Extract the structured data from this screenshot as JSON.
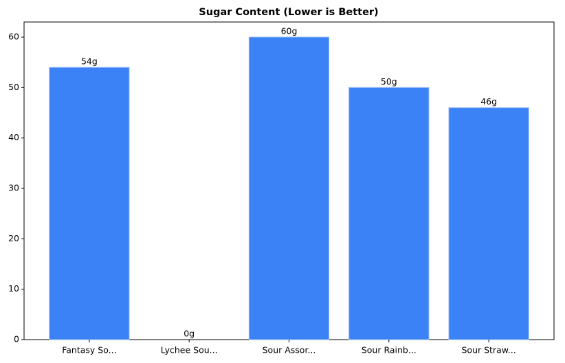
{
  "chart_data": {
    "type": "bar",
    "title": "Sugar Content (Lower is Better)",
    "categories": [
      "Fantasy So...",
      "Lychee Sou...",
      "Sour Assor...",
      "Sour Rainb...",
      "Sour Straw..."
    ],
    "values": [
      54,
      0,
      60,
      50,
      46
    ],
    "value_labels": [
      "54g",
      "0g",
      "60g",
      "50g",
      "46g"
    ],
    "color": "#3b82f6",
    "ylim": [
      0,
      63
    ],
    "yticks": [
      0,
      10,
      20,
      30,
      40,
      50,
      60
    ],
    "grid": false
  }
}
